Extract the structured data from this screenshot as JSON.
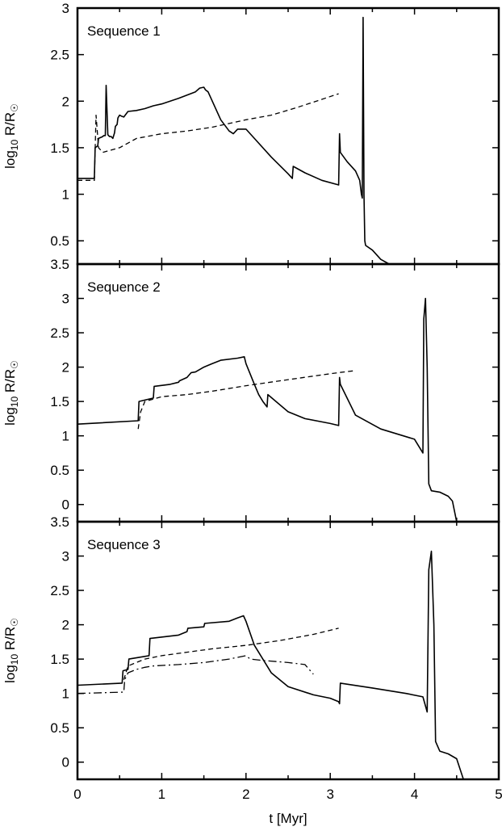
{
  "chart_data": [
    {
      "type": "line",
      "title": "Sequence 1",
      "xlabel": "",
      "ylabel": "log10 R/R☉",
      "xlim": [
        0,
        5
      ],
      "ylim": [
        0.25,
        3.0
      ],
      "yticks": [
        "0.5",
        "1",
        "1.5",
        "2",
        "2.5",
        "3"
      ],
      "series": [
        {
          "style": "solid",
          "x": [
            0,
            0.2,
            0.21,
            0.24,
            0.25,
            0.3,
            0.31,
            0.33,
            0.34,
            0.36,
            0.38,
            0.4,
            0.42,
            0.44,
            0.45,
            0.47,
            0.48,
            0.5,
            0.52,
            0.55,
            0.6,
            0.7,
            0.8,
            0.9,
            1.0,
            1.2,
            1.4,
            1.45,
            1.5,
            1.52,
            1.55,
            1.7,
            1.8,
            1.85,
            1.9,
            2.0,
            2.1,
            2.3,
            2.5,
            2.55,
            2.56,
            2.7,
            2.9,
            3.1,
            3.11,
            3.12,
            3.2,
            3.3,
            3.35,
            3.37,
            3.38,
            3.39,
            3.4,
            3.41,
            3.42,
            3.5,
            3.6,
            3.7,
            3.73
          ],
          "y": [
            1.17,
            1.17,
            1.5,
            1.52,
            1.6,
            1.62,
            1.63,
            1.63,
            2.17,
            1.64,
            1.62,
            1.62,
            1.6,
            1.66,
            1.73,
            1.75,
            1.82,
            1.85,
            1.84,
            1.83,
            1.89,
            1.9,
            1.92,
            1.95,
            1.97,
            2.03,
            2.1,
            2.14,
            2.15,
            2.12,
            2.1,
            1.8,
            1.68,
            1.65,
            1.7,
            1.7,
            1.6,
            1.4,
            1.22,
            1.17,
            1.3,
            1.23,
            1.15,
            1.1,
            1.65,
            1.45,
            1.35,
            1.25,
            1.15,
            1.0,
            0.96,
            2.9,
            1.0,
            0.5,
            0.45,
            0.4,
            0.3,
            0.25,
            0.25
          ]
        },
        {
          "style": "dashed",
          "x": [
            0,
            0.2,
            0.22,
            0.25,
            0.3,
            0.5,
            0.7,
            1.0,
            1.3,
            1.6,
            2.0,
            2.3,
            2.6,
            2.9,
            3.1
          ],
          "y": [
            1.15,
            1.15,
            1.85,
            1.5,
            1.45,
            1.5,
            1.6,
            1.65,
            1.68,
            1.72,
            1.8,
            1.85,
            1.93,
            2.02,
            2.08
          ]
        }
      ]
    },
    {
      "type": "line",
      "title": "Sequence 2",
      "xlabel": "",
      "ylabel": "log10 R/R☉",
      "xlim": [
        0,
        5
      ],
      "ylim": [
        -0.25,
        3.5
      ],
      "yticks": [
        "0",
        "0.5",
        "1",
        "1.5",
        "2",
        "2.5",
        "3",
        "3.5"
      ],
      "series": [
        {
          "style": "solid",
          "x": [
            0,
            0.72,
            0.73,
            0.8,
            0.9,
            0.91,
            1.1,
            1.2,
            1.21,
            1.3,
            1.35,
            1.4,
            1.5,
            1.6,
            1.7,
            1.9,
            1.98,
            2.0,
            2.1,
            2.15,
            2.2,
            2.25,
            2.26,
            2.5,
            2.7,
            3.0,
            3.1,
            3.11,
            3.12,
            3.3,
            3.6,
            4.0,
            4.1,
            4.11,
            4.13,
            4.15,
            4.17,
            4.2,
            4.3,
            4.4,
            4.45,
            4.5
          ],
          "y": [
            1.17,
            1.22,
            1.5,
            1.52,
            1.55,
            1.72,
            1.75,
            1.78,
            1.8,
            1.85,
            1.92,
            1.93,
            2.0,
            2.05,
            2.1,
            2.13,
            2.15,
            2.05,
            1.75,
            1.6,
            1.5,
            1.42,
            1.6,
            1.35,
            1.25,
            1.18,
            1.15,
            1.85,
            1.75,
            1.3,
            1.1,
            0.95,
            0.75,
            2.7,
            3.0,
            2.0,
            0.3,
            0.2,
            0.18,
            0.12,
            0.05,
            -0.25
          ]
        },
        {
          "style": "dashed",
          "x": [
            0.72,
            0.75,
            0.8,
            1.0,
            1.3,
            1.6,
            2.0,
            2.4,
            2.8,
            3.1,
            3.3
          ],
          "y": [
            1.1,
            1.35,
            1.5,
            1.57,
            1.6,
            1.65,
            1.73,
            1.8,
            1.87,
            1.92,
            1.95
          ]
        }
      ]
    },
    {
      "type": "line",
      "title": "Sequence 3",
      "xlabel": "t [Myr]",
      "ylabel": "log10 R/R☉",
      "xlim": [
        0,
        5
      ],
      "ylim": [
        -0.25,
        3.5
      ],
      "xticks": [
        "0",
        "1",
        "2",
        "3",
        "4",
        "5"
      ],
      "yticks": [
        "0",
        "0.5",
        "1",
        "1.5",
        "2",
        "2.5",
        "3",
        "3.5"
      ],
      "series": [
        {
          "style": "solid",
          "x": [
            0,
            0.53,
            0.54,
            0.6,
            0.61,
            0.85,
            0.86,
            1.2,
            1.3,
            1.31,
            1.5,
            1.51,
            1.8,
            1.9,
            1.97,
            2.0,
            2.1,
            2.3,
            2.5,
            2.8,
            3.0,
            3.1,
            3.11,
            3.12,
            3.5,
            3.9,
            4.1,
            4.15,
            4.17,
            4.2,
            4.23,
            4.25,
            4.3,
            4.4,
            4.5,
            4.58
          ],
          "y": [
            1.12,
            1.15,
            1.33,
            1.35,
            1.5,
            1.55,
            1.8,
            1.85,
            1.9,
            1.95,
            1.97,
            2.02,
            2.05,
            2.1,
            2.13,
            2.05,
            1.7,
            1.3,
            1.1,
            0.98,
            0.93,
            0.88,
            0.85,
            1.15,
            1.08,
            1.0,
            0.95,
            0.73,
            2.8,
            3.07,
            2.0,
            0.3,
            0.16,
            0.12,
            0.05,
            -0.25
          ]
        },
        {
          "style": "dashed",
          "x": [
            0.55,
            0.6,
            0.8,
            1.0,
            1.3,
            1.6,
            2.0,
            2.4,
            2.8,
            3.1
          ],
          "y": [
            1.2,
            1.4,
            1.5,
            1.55,
            1.6,
            1.65,
            1.7,
            1.77,
            1.86,
            1.95
          ]
        },
        {
          "style": "dashdot",
          "x": [
            0,
            0.55,
            0.56,
            0.6,
            0.7,
            0.8,
            0.9,
            1.2,
            1.5,
            1.8,
            2.0,
            2.05,
            2.2,
            2.5,
            2.7,
            2.75,
            2.8
          ],
          "y": [
            1.0,
            1.02,
            1.2,
            1.3,
            1.35,
            1.38,
            1.4,
            1.42,
            1.45,
            1.5,
            1.55,
            1.5,
            1.48,
            1.45,
            1.42,
            1.35,
            1.28
          ]
        }
      ]
    }
  ]
}
